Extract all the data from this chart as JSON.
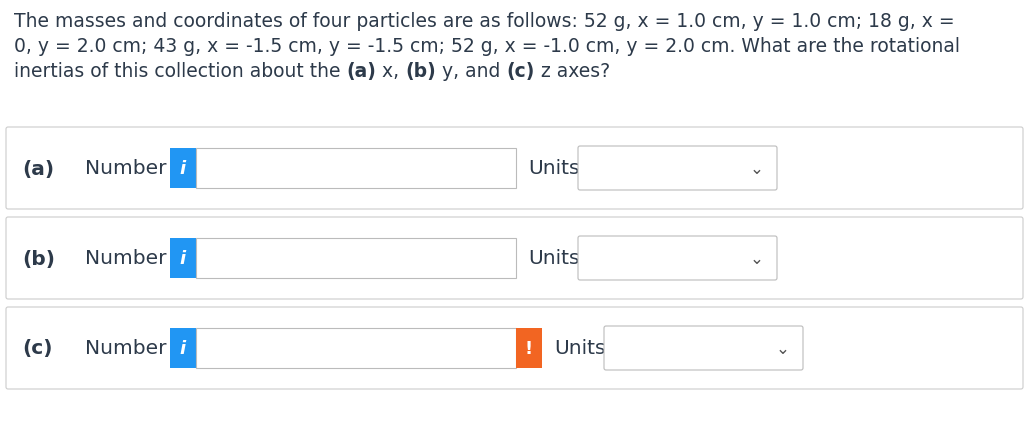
{
  "background_color": "#ffffff",
  "border_color": "#cccccc",
  "text_color": "#2d3a4a",
  "question_fontsize": 13.5,
  "label_fontsize": 14.5,
  "units_fontsize": 14.5,
  "blue_button_color": "#2196F3",
  "orange_button_color": "#F26522",
  "row_border_color": "#cccccc",
  "rows": [
    {
      "label": "(a)",
      "has_orange_button": false
    },
    {
      "label": "(b)",
      "has_orange_button": false
    },
    {
      "label": "(c)",
      "has_orange_button": true
    }
  ],
  "line1": "The masses and coordinates of four particles are as follows: 52 g, x = 1.0 cm, y = 1.0 cm; 18 g, x =",
  "line2": "0, y = 2.0 cm; 43 g, x = -1.5 cm, y = -1.5 cm; 52 g, x = -1.0 cm, y = 2.0 cm. What are the rotational",
  "line3_plain": "inertias of this collection about the ",
  "line3_a": "(a)",
  "line3_x": " x, ",
  "line3_b": "(b)",
  "line3_y": " y, and ",
  "line3_c": "(c)",
  "line3_z": " z axes?"
}
